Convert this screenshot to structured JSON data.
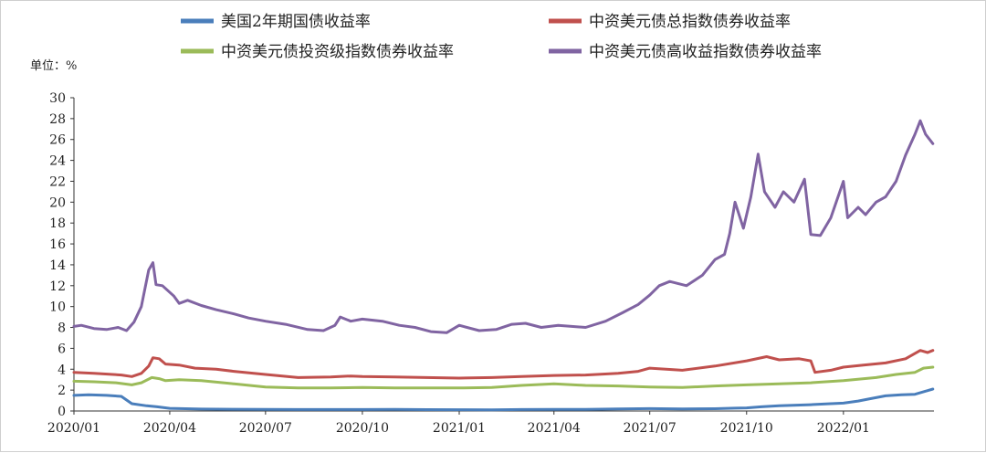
{
  "chart_data": {
    "type": "line",
    "unit_label": "单位：%",
    "ylim": [
      0,
      30
    ],
    "yticks": [
      0,
      2,
      4,
      6,
      8,
      10,
      12,
      14,
      16,
      18,
      20,
      22,
      24,
      26,
      28,
      30
    ],
    "xlim": [
      "2020-01",
      "2022-03"
    ],
    "xticks": [
      "2020/01",
      "2020/04",
      "2020/07",
      "2020/10",
      "2021/01",
      "2021/04",
      "2021/07",
      "2021/10",
      "2022/01"
    ],
    "grid": false,
    "legend_position": "top",
    "series": [
      {
        "name": "美国2年期国债收益率",
        "color": "#4a7ebb",
        "points": [
          [
            "2020-01-01",
            1.5
          ],
          [
            "2020-01-15",
            1.55
          ],
          [
            "2020-02-01",
            1.5
          ],
          [
            "2020-02-15",
            1.4
          ],
          [
            "2020-02-25",
            0.7
          ],
          [
            "2020-03-10",
            0.5
          ],
          [
            "2020-03-20",
            0.4
          ],
          [
            "2020-04-01",
            0.25
          ],
          [
            "2020-05-01",
            0.18
          ],
          [
            "2020-06-01",
            0.17
          ],
          [
            "2020-07-01",
            0.15
          ],
          [
            "2020-08-01",
            0.14
          ],
          [
            "2020-09-01",
            0.14
          ],
          [
            "2020-10-01",
            0.14
          ],
          [
            "2020-11-01",
            0.16
          ],
          [
            "2020-12-01",
            0.13
          ],
          [
            "2021-01-01",
            0.12
          ],
          [
            "2021-02-01",
            0.11
          ],
          [
            "2021-03-01",
            0.14
          ],
          [
            "2021-04-01",
            0.16
          ],
          [
            "2021-05-01",
            0.15
          ],
          [
            "2021-06-01",
            0.2
          ],
          [
            "2021-07-01",
            0.23
          ],
          [
            "2021-08-01",
            0.2
          ],
          [
            "2021-09-01",
            0.22
          ],
          [
            "2021-09-20",
            0.27
          ],
          [
            "2021-10-01",
            0.3
          ],
          [
            "2021-10-15",
            0.4
          ],
          [
            "2021-11-01",
            0.5
          ],
          [
            "2021-12-01",
            0.6
          ],
          [
            "2021-12-20",
            0.7
          ],
          [
            "2022-01-01",
            0.75
          ],
          [
            "2022-01-15",
            0.95
          ],
          [
            "2022-01-25",
            1.15
          ],
          [
            "2022-02-10",
            1.45
          ],
          [
            "2022-02-25",
            1.55
          ],
          [
            "2022-03-10",
            1.6
          ],
          [
            "2022-03-20",
            1.9
          ],
          [
            "2022-03-27",
            2.1
          ]
        ]
      },
      {
        "name": "中资美元债总指数债券收益率",
        "color": "#c0504d",
        "points": [
          [
            "2020-01-01",
            3.7
          ],
          [
            "2020-01-20",
            3.6
          ],
          [
            "2020-02-15",
            3.45
          ],
          [
            "2020-02-25",
            3.3
          ],
          [
            "2020-03-05",
            3.6
          ],
          [
            "2020-03-12",
            4.3
          ],
          [
            "2020-03-16",
            5.1
          ],
          [
            "2020-03-22",
            5.0
          ],
          [
            "2020-03-28",
            4.5
          ],
          [
            "2020-04-10",
            4.4
          ],
          [
            "2020-04-25",
            4.1
          ],
          [
            "2020-05-15",
            4.0
          ],
          [
            "2020-06-01",
            3.8
          ],
          [
            "2020-07-01",
            3.5
          ],
          [
            "2020-08-01",
            3.2
          ],
          [
            "2020-09-01",
            3.25
          ],
          [
            "2020-09-20",
            3.35
          ],
          [
            "2020-10-01",
            3.3
          ],
          [
            "2020-11-01",
            3.25
          ],
          [
            "2020-12-01",
            3.2
          ],
          [
            "2021-01-01",
            3.15
          ],
          [
            "2021-02-01",
            3.2
          ],
          [
            "2021-03-01",
            3.3
          ],
          [
            "2021-04-01",
            3.4
          ],
          [
            "2021-05-01",
            3.45
          ],
          [
            "2021-06-01",
            3.6
          ],
          [
            "2021-06-20",
            3.8
          ],
          [
            "2021-07-01",
            4.1
          ],
          [
            "2021-08-01",
            3.9
          ],
          [
            "2021-09-01",
            4.3
          ],
          [
            "2021-10-01",
            4.8
          ],
          [
            "2021-10-20",
            5.2
          ],
          [
            "2021-11-01",
            4.9
          ],
          [
            "2021-11-20",
            5.0
          ],
          [
            "2021-12-01",
            4.8
          ],
          [
            "2021-12-05",
            3.7
          ],
          [
            "2021-12-20",
            3.9
          ],
          [
            "2022-01-01",
            4.2
          ],
          [
            "2022-01-20",
            4.4
          ],
          [
            "2022-02-10",
            4.6
          ],
          [
            "2022-03-01",
            5.0
          ],
          [
            "2022-03-15",
            5.8
          ],
          [
            "2022-03-22",
            5.6
          ],
          [
            "2022-03-27",
            5.8
          ]
        ]
      },
      {
        "name": "中资美元债投资级指数债券收益率",
        "color": "#9bbb59",
        "points": [
          [
            "2020-01-01",
            2.85
          ],
          [
            "2020-01-20",
            2.8
          ],
          [
            "2020-02-10",
            2.7
          ],
          [
            "2020-02-25",
            2.5
          ],
          [
            "2020-03-05",
            2.7
          ],
          [
            "2020-03-15",
            3.2
          ],
          [
            "2020-03-22",
            3.1
          ],
          [
            "2020-03-28",
            2.9
          ],
          [
            "2020-04-10",
            3.0
          ],
          [
            "2020-05-01",
            2.9
          ],
          [
            "2020-06-01",
            2.6
          ],
          [
            "2020-07-01",
            2.3
          ],
          [
            "2020-08-01",
            2.2
          ],
          [
            "2020-09-01",
            2.2
          ],
          [
            "2020-10-01",
            2.25
          ],
          [
            "2020-11-01",
            2.2
          ],
          [
            "2020-12-01",
            2.2
          ],
          [
            "2021-01-01",
            2.2
          ],
          [
            "2021-02-01",
            2.25
          ],
          [
            "2021-03-01",
            2.45
          ],
          [
            "2021-04-01",
            2.6
          ],
          [
            "2021-05-01",
            2.45
          ],
          [
            "2021-06-01",
            2.4
          ],
          [
            "2021-07-01",
            2.3
          ],
          [
            "2021-08-01",
            2.25
          ],
          [
            "2021-09-01",
            2.4
          ],
          [
            "2021-10-01",
            2.5
          ],
          [
            "2021-11-01",
            2.6
          ],
          [
            "2021-12-01",
            2.7
          ],
          [
            "2022-01-01",
            2.9
          ],
          [
            "2022-02-01",
            3.2
          ],
          [
            "2022-02-20",
            3.5
          ],
          [
            "2022-03-10",
            3.7
          ],
          [
            "2022-03-18",
            4.1
          ],
          [
            "2022-03-27",
            4.2
          ]
        ]
      },
      {
        "name": "中资美元债高收益指数债券收益率",
        "color": "#8064a2",
        "points": [
          [
            "2020-01-01",
            8.1
          ],
          [
            "2020-01-08",
            8.2
          ],
          [
            "2020-01-20",
            7.9
          ],
          [
            "2020-02-01",
            7.8
          ],
          [
            "2020-02-12",
            8.0
          ],
          [
            "2020-02-20",
            7.7
          ],
          [
            "2020-02-27",
            8.5
          ],
          [
            "2020-03-05",
            10.0
          ],
          [
            "2020-03-12",
            13.5
          ],
          [
            "2020-03-16",
            14.2
          ],
          [
            "2020-03-19",
            12.1
          ],
          [
            "2020-03-25",
            12.0
          ],
          [
            "2020-04-05",
            11.0
          ],
          [
            "2020-04-10",
            10.3
          ],
          [
            "2020-04-18",
            10.6
          ],
          [
            "2020-05-01",
            10.1
          ],
          [
            "2020-05-15",
            9.7
          ],
          [
            "2020-06-01",
            9.3
          ],
          [
            "2020-06-15",
            8.9
          ],
          [
            "2020-07-01",
            8.6
          ],
          [
            "2020-07-20",
            8.3
          ],
          [
            "2020-08-10",
            7.8
          ],
          [
            "2020-08-25",
            7.7
          ],
          [
            "2020-09-05",
            8.2
          ],
          [
            "2020-09-10",
            9.0
          ],
          [
            "2020-09-20",
            8.6
          ],
          [
            "2020-10-01",
            8.8
          ],
          [
            "2020-10-20",
            8.6
          ],
          [
            "2020-11-05",
            8.2
          ],
          [
            "2020-11-20",
            8.0
          ],
          [
            "2020-12-05",
            7.6
          ],
          [
            "2020-12-20",
            7.5
          ],
          [
            "2021-01-01",
            8.2
          ],
          [
            "2021-01-20",
            7.7
          ],
          [
            "2021-02-05",
            7.8
          ],
          [
            "2021-02-20",
            8.3
          ],
          [
            "2021-03-05",
            8.4
          ],
          [
            "2021-03-20",
            8.0
          ],
          [
            "2021-04-05",
            8.2
          ],
          [
            "2021-05-01",
            8.0
          ],
          [
            "2021-05-20",
            8.6
          ],
          [
            "2021-06-05",
            9.4
          ],
          [
            "2021-06-20",
            10.2
          ],
          [
            "2021-07-01",
            11.1
          ],
          [
            "2021-07-10",
            12.0
          ],
          [
            "2021-07-20",
            12.4
          ],
          [
            "2021-08-05",
            12.0
          ],
          [
            "2021-08-20",
            13.0
          ],
          [
            "2021-09-01",
            14.5
          ],
          [
            "2021-09-10",
            15.0
          ],
          [
            "2021-09-15",
            17.0
          ],
          [
            "2021-09-20",
            20.0
          ],
          [
            "2021-09-28",
            17.5
          ],
          [
            "2021-10-05",
            20.5
          ],
          [
            "2021-10-12",
            24.6
          ],
          [
            "2021-10-18",
            21.0
          ],
          [
            "2021-10-28",
            19.5
          ],
          [
            "2021-11-05",
            21.0
          ],
          [
            "2021-11-15",
            20.0
          ],
          [
            "2021-11-25",
            22.2
          ],
          [
            "2021-12-01",
            16.9
          ],
          [
            "2021-12-10",
            16.8
          ],
          [
            "2021-12-20",
            18.5
          ],
          [
            "2022-01-01",
            22.0
          ],
          [
            "2022-01-05",
            18.5
          ],
          [
            "2022-01-15",
            19.5
          ],
          [
            "2022-01-22",
            18.8
          ],
          [
            "2022-02-01",
            20.0
          ],
          [
            "2022-02-10",
            20.5
          ],
          [
            "2022-02-20",
            22.0
          ],
          [
            "2022-03-01",
            24.5
          ],
          [
            "2022-03-10",
            26.5
          ],
          [
            "2022-03-15",
            27.8
          ],
          [
            "2022-03-20",
            26.5
          ],
          [
            "2022-03-27",
            25.6
          ]
        ]
      }
    ]
  }
}
